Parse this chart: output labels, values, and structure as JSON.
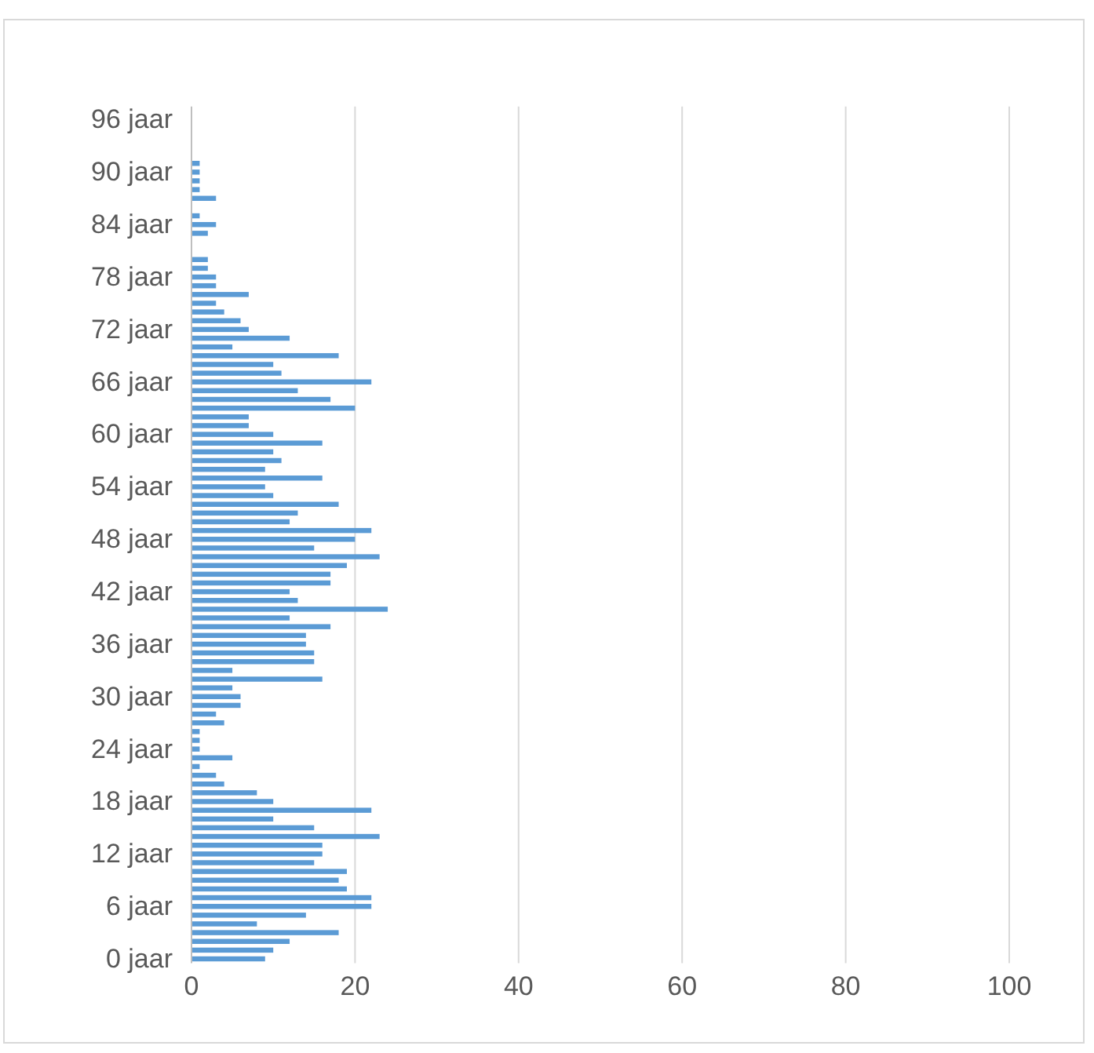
{
  "chart_data": {
    "type": "bar",
    "orientation": "horizontal",
    "color": "#5b9bd5",
    "categories": [
      null,
      "96 jaar",
      null,
      null,
      null,
      null,
      null,
      "90 jaar",
      null,
      null,
      null,
      null,
      null,
      "84 jaar",
      null,
      null,
      null,
      null,
      null,
      "78 jaar",
      null,
      null,
      null,
      null,
      null,
      "72 jaar",
      null,
      null,
      null,
      null,
      null,
      "66 jaar",
      null,
      null,
      null,
      null,
      null,
      "60 jaar",
      null,
      null,
      null,
      null,
      null,
      "54 jaar",
      null,
      null,
      null,
      null,
      null,
      "48 jaar",
      null,
      null,
      null,
      null,
      null,
      "42 jaar",
      null,
      null,
      null,
      null,
      null,
      "36 jaar",
      null,
      null,
      null,
      null,
      null,
      "30 jaar",
      null,
      null,
      null,
      null,
      null,
      "24 jaar",
      null,
      null,
      null,
      null,
      null,
      "18 jaar",
      null,
      null,
      null,
      null,
      null,
      "12 jaar",
      null,
      null,
      null,
      null,
      null,
      "6 jaar",
      null,
      null,
      null,
      null,
      null,
      "0 jaar"
    ],
    "values": [
      0,
      0,
      0,
      0,
      0,
      0,
      1,
      1,
      1,
      1,
      3,
      0,
      1,
      3,
      2,
      0,
      0,
      2,
      2,
      3,
      3,
      7,
      3,
      4,
      6,
      7,
      12,
      5,
      18,
      10,
      11,
      22,
      13,
      17,
      20,
      7,
      7,
      10,
      16,
      10,
      11,
      9,
      16,
      9,
      10,
      18,
      13,
      12,
      22,
      20,
      15,
      23,
      19,
      17,
      17,
      12,
      13,
      24,
      12,
      17,
      14,
      14,
      15,
      15,
      5,
      16,
      5,
      6,
      6,
      3,
      4,
      1,
      1,
      1,
      5,
      1,
      3,
      4,
      8,
      10,
      22,
      10,
      15,
      23,
      16,
      16,
      15,
      19,
      18,
      19,
      22,
      22,
      14,
      8,
      18,
      12,
      10,
      9
    ],
    "xlim": [
      0,
      100
    ],
    "xticks": [
      0,
      20,
      40,
      60,
      80,
      100
    ],
    "grid": "x"
  }
}
